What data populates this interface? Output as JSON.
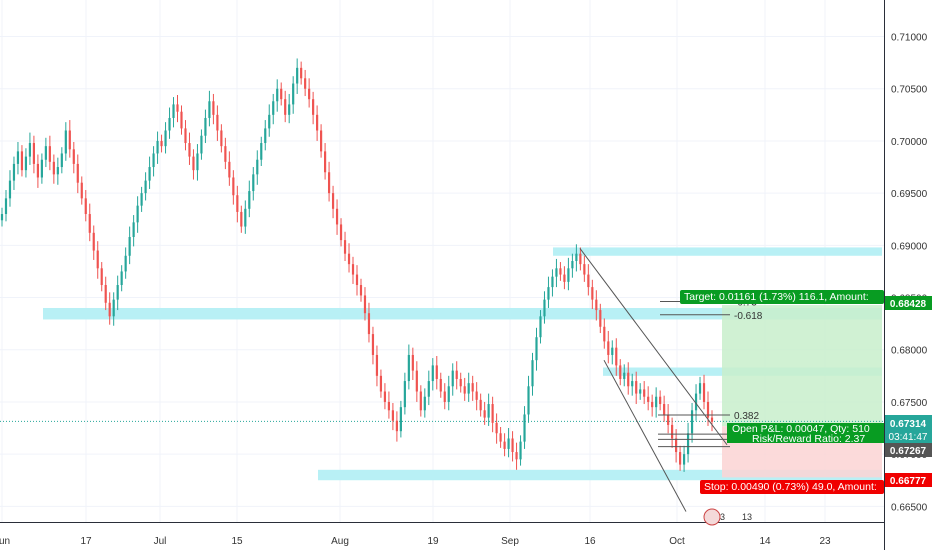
{
  "chart_data": {
    "type": "candlestick",
    "x_tick_labels": [
      "Jun",
      "17",
      "Jul",
      "15",
      "Aug",
      "19",
      "Sep",
      "16",
      "Oct",
      "14",
      "23"
    ],
    "y_tick_labels": [
      "0.71000",
      "0.70500",
      "0.70000",
      "0.69500",
      "0.69000",
      "0.68500",
      "0.68000",
      "0.67500",
      "0.67000",
      "0.66500"
    ],
    "ylim": [
      0.6635,
      0.7135
    ],
    "current_price": "0.67314",
    "countdown": "03:41:47",
    "grid": true,
    "series": [
      {
        "values": [
          0.693,
          0.6945,
          0.6962,
          0.6978,
          0.699,
          0.6972,
          0.6985,
          0.6998,
          0.6978,
          0.6965,
          0.6982,
          0.6995,
          0.698,
          0.6968,
          0.6975,
          0.6988,
          0.701,
          0.6992,
          0.6978,
          0.696,
          0.6945,
          0.693,
          0.6912,
          0.6895,
          0.6878,
          0.6862,
          0.6845,
          0.6832,
          0.6848,
          0.6862,
          0.6875,
          0.689,
          0.6908,
          0.6922,
          0.6938,
          0.695,
          0.6962,
          0.6975,
          0.6988,
          0.7,
          0.6995,
          0.701,
          0.7022,
          0.7035,
          0.7028,
          0.7012,
          0.6998,
          0.6985,
          0.6972,
          0.6988,
          0.7005,
          0.7022,
          0.7038,
          0.7025,
          0.701,
          0.6995,
          0.698,
          0.6965,
          0.6948,
          0.6932,
          0.6918,
          0.6935,
          0.6952,
          0.6968,
          0.6982,
          0.6998,
          0.7012,
          0.7025,
          0.7038,
          0.705,
          0.704,
          0.7025,
          0.7035,
          0.7055,
          0.707,
          0.706,
          0.705,
          0.704,
          0.7025,
          0.701,
          0.699,
          0.697,
          0.695,
          0.6935,
          0.692,
          0.6905,
          0.6892,
          0.6882,
          0.6872,
          0.6862,
          0.6852,
          0.6835,
          0.6815,
          0.6795,
          0.6775,
          0.676,
          0.675,
          0.6742,
          0.6732,
          0.6722,
          0.6745,
          0.677,
          0.6795,
          0.678,
          0.676,
          0.6742,
          0.6755,
          0.677,
          0.6785,
          0.6772,
          0.676,
          0.675,
          0.6765,
          0.678,
          0.6772,
          0.6765,
          0.6758,
          0.6768,
          0.676,
          0.6752,
          0.6742,
          0.6735,
          0.6748,
          0.673,
          0.672,
          0.6712,
          0.6705,
          0.6715,
          0.6702,
          0.6695,
          0.6712,
          0.6738,
          0.6765,
          0.679,
          0.6812,
          0.6832,
          0.6848,
          0.686,
          0.687,
          0.6878,
          0.6872,
          0.6865,
          0.6878,
          0.6885,
          0.6892,
          0.6882,
          0.6872,
          0.686,
          0.6848,
          0.6838,
          0.6822,
          0.6808,
          0.6795,
          0.6802,
          0.6785,
          0.6772,
          0.6778,
          0.6765,
          0.677,
          0.6758,
          0.6762,
          0.6755,
          0.675,
          0.6745,
          0.6755,
          0.6748,
          0.6738,
          0.6728,
          0.6715,
          0.6702,
          0.669,
          0.67,
          0.672,
          0.6742,
          0.6758,
          0.6768,
          0.675,
          0.6735,
          0.6731
        ]
      }
    ],
    "annotations": {
      "target_label": "Target: 0.01161 (1.73%) 116.1, Amount:",
      "stop_label": "Stop: 0.00490 (0.73%) 49.0, Amount:",
      "open_pnl_label": "Open P&L: 0.00047, Qty: 510",
      "rr_label": "Risk/Reward Ratio: 2.37",
      "target_price": "0.68428",
      "stop_price": "0.66777",
      "entry_price": "0.67267",
      "fib_0382": "0.382",
      "fib_n0618": "-0.618",
      "fib_n073": "-0.73",
      "event_count": "3",
      "event_count_2": "13"
    },
    "colors": {
      "up": "#26a69a",
      "down": "#ef5350",
      "zone": "#b8f0f5",
      "target_fill": "#c8eecb",
      "stop_fill": "#fcd4d4",
      "target_label_bg": "#089c22",
      "stop_label_bg": "#f00000",
      "price_label_bg": "#26a69a",
      "entry_label_bg": "#555555"
    }
  }
}
